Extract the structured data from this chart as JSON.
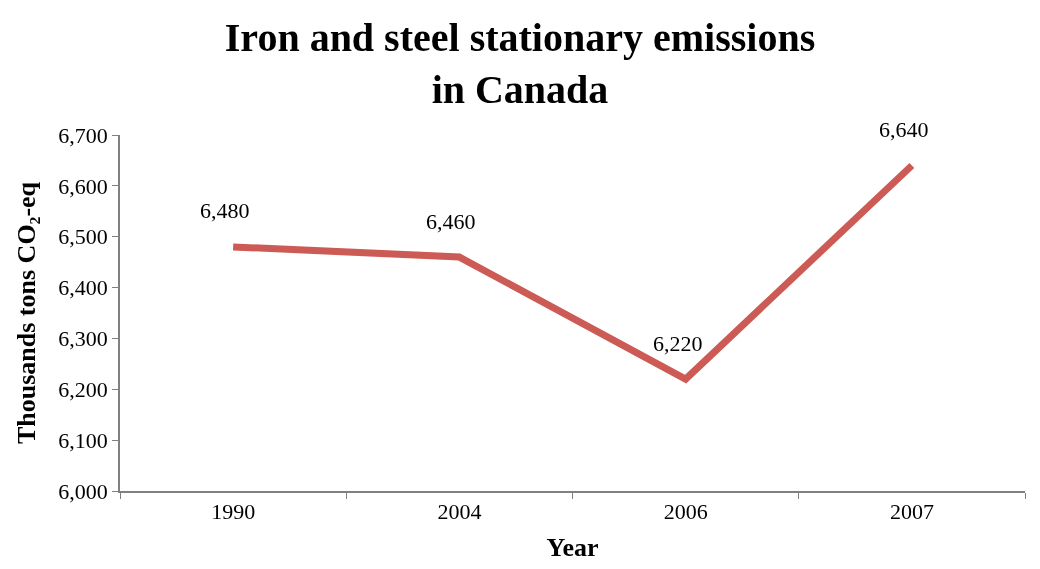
{
  "chart_data": {
    "type": "line",
    "title": "Iron and steel stationary emissions in Canada",
    "xlabel": "Year",
    "ylabel": "Thousands tons CO₂-eq",
    "categories": [
      "1990",
      "2004",
      "2006",
      "2007"
    ],
    "series": [
      {
        "color": "#cd5b55",
        "values": [
          6480,
          6460,
          6220,
          6640
        ],
        "value_labels": [
          "6,480",
          "6,460",
          "6,220",
          "6,640"
        ]
      }
    ],
    "ylim": [
      6000,
      6700
    ],
    "yticks": [
      {
        "value": 6000,
        "label": "6,000"
      },
      {
        "value": 6100,
        "label": "6,100"
      },
      {
        "value": 6200,
        "label": "6,200"
      },
      {
        "value": 6300,
        "label": "6,300"
      },
      {
        "value": 6400,
        "label": "6,400"
      },
      {
        "value": 6500,
        "label": "6,500"
      },
      {
        "value": 6600,
        "label": "6,600"
      },
      {
        "value": 6700,
        "label": "6,700"
      }
    ],
    "marker": "none",
    "line_style": "solid"
  }
}
